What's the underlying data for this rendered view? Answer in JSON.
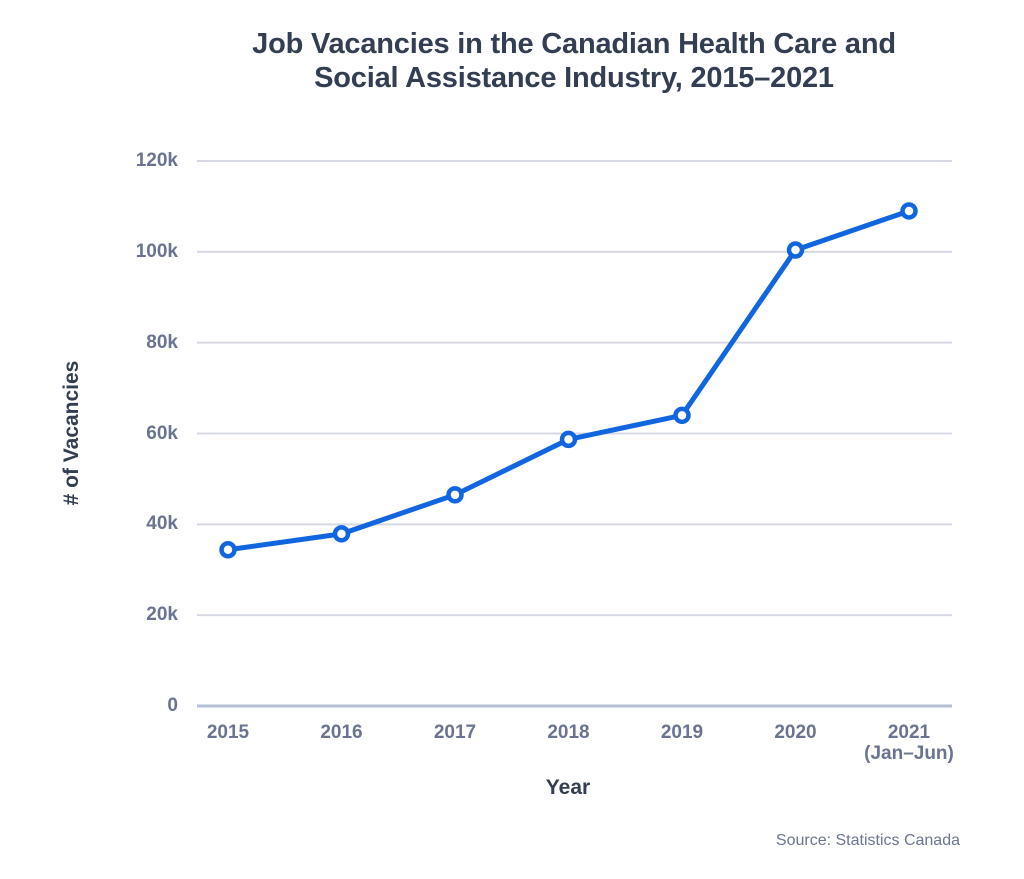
{
  "chart_data": {
    "type": "line",
    "title": "Job Vacancies in the Canadian Health Care and\nSocial Assistance Industry, 2015–2021",
    "xlabel": "Year",
    "ylabel": "# of Vacancies",
    "source_note": "Source: Statistics Canada",
    "categories": [
      "2015",
      "2016",
      "2017",
      "2018",
      "2019",
      "2020",
      "2021"
    ],
    "category_sublabels": [
      "",
      "",
      "",
      "",
      "",
      "",
      "(Jan–Jun)"
    ],
    "values": [
      34400,
      37900,
      46500,
      58700,
      64000,
      100400,
      109000
    ],
    "ylim": [
      0,
      120000
    ],
    "ytick_values": [
      0,
      20000,
      40000,
      60000,
      80000,
      100000,
      120000
    ],
    "ytick_labels": [
      "0",
      "20k",
      "40k",
      "60k",
      "80k",
      "100k",
      "120k"
    ],
    "grid": "horizontal-only",
    "legend": "none",
    "colors": {
      "line": "#1166e0",
      "marker_fill": "#ffffff",
      "gridline": "#d6d9e3",
      "axis_baseline": "#b3c0d6",
      "title_text": "#333e52",
      "tick_text": "#6a7492",
      "source_text": "#6b7590",
      "background": "#ffffff"
    }
  }
}
